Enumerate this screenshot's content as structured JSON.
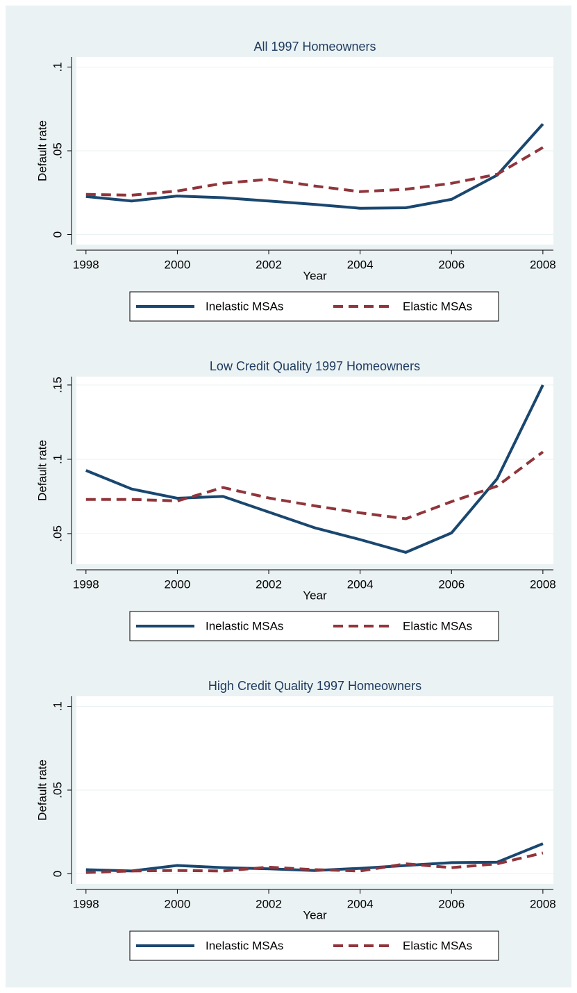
{
  "chart_data": [
    {
      "type": "line",
      "title": "All 1997 Homeowners",
      "y_label": "Default rate",
      "x_label": "Year",
      "x": [
        1998,
        1999,
        2000,
        2001,
        2002,
        2003,
        2004,
        2005,
        2006,
        2007,
        2008
      ],
      "xlim": [
        1997.79,
        2008.23
      ],
      "xticks": [
        1998,
        2000,
        2002,
        2004,
        2006,
        2008
      ],
      "ylim": [
        -0.006,
        0.106
      ],
      "yticks": [
        0,
        {
          "value": 0.05,
          "label": ".05"
        },
        {
          "value": 0.1,
          "label": ".1"
        }
      ],
      "grid": true,
      "legend": "bottom",
      "series": [
        {
          "name": "Inelastic MSAs",
          "color": "#1a476f",
          "dash": false,
          "values": [
            0.0227,
            0.02,
            0.023,
            0.022,
            0.02,
            0.018,
            0.0157,
            0.016,
            0.021,
            0.0355,
            0.066
          ]
        },
        {
          "name": "Elastic MSAs",
          "color": "#90353b",
          "dash": true,
          "values": [
            0.024,
            0.0235,
            0.026,
            0.0306,
            0.033,
            0.029,
            0.0256,
            0.027,
            0.0306,
            0.036,
            0.052
          ]
        }
      ]
    },
    {
      "type": "line",
      "title": "Low Credit Quality 1997 Homeowners",
      "y_label": "Default rate",
      "x_label": "Year",
      "x": [
        1998,
        1999,
        2000,
        2001,
        2002,
        2003,
        2004,
        2005,
        2006,
        2007,
        2008
      ],
      "xlim": [
        1997.79,
        2008.23
      ],
      "xticks": [
        1998,
        2000,
        2002,
        2004,
        2006,
        2008
      ],
      "ylim": [
        0.0294,
        0.1556
      ],
      "yticks": [
        {
          "value": 0.05,
          "label": ".05"
        },
        {
          "value": 0.1,
          "label": ".1"
        },
        {
          "value": 0.15,
          "label": ".15"
        }
      ],
      "grid": true,
      "legend": "bottom",
      "series": [
        {
          "name": "Inelastic MSAs",
          "color": "#1a476f",
          "dash": false,
          "values": [
            0.0925,
            0.08,
            0.0738,
            0.075,
            0.0645,
            0.054,
            0.046,
            0.0374,
            0.0505,
            0.087,
            0.15
          ]
        },
        {
          "name": "Elastic MSAs",
          "color": "#90353b",
          "dash": true,
          "values": [
            0.073,
            0.073,
            0.072,
            0.081,
            0.074,
            0.0687,
            0.064,
            0.06,
            0.0715,
            0.082,
            0.105
          ]
        }
      ]
    },
    {
      "type": "line",
      "title": "High Credit Quality 1997 Homeowners",
      "y_label": "Default rate",
      "x_label": "Year",
      "x": [
        1998,
        1999,
        2000,
        2001,
        2002,
        2003,
        2004,
        2005,
        2006,
        2007,
        2008
      ],
      "xlim": [
        1997.79,
        2008.23
      ],
      "xticks": [
        1998,
        2000,
        2002,
        2004,
        2006,
        2008
      ],
      "ylim": [
        -0.006,
        0.106
      ],
      "yticks": [
        0,
        {
          "value": 0.05,
          "label": ".05"
        },
        {
          "value": 0.1,
          "label": ".1"
        }
      ],
      "grid": true,
      "legend": "bottom",
      "series": [
        {
          "name": "Inelastic MSAs",
          "color": "#1a476f",
          "dash": false,
          "values": [
            0.0025,
            0.0017,
            0.005,
            0.0037,
            0.003,
            0.002,
            0.0033,
            0.005,
            0.0067,
            0.007,
            0.018
          ]
        },
        {
          "name": "Elastic MSAs",
          "color": "#90353b",
          "dash": true,
          "values": [
            0.0008,
            0.0017,
            0.002,
            0.0017,
            0.004,
            0.0025,
            0.0017,
            0.006,
            0.0037,
            0.006,
            0.0125
          ]
        }
      ]
    }
  ]
}
